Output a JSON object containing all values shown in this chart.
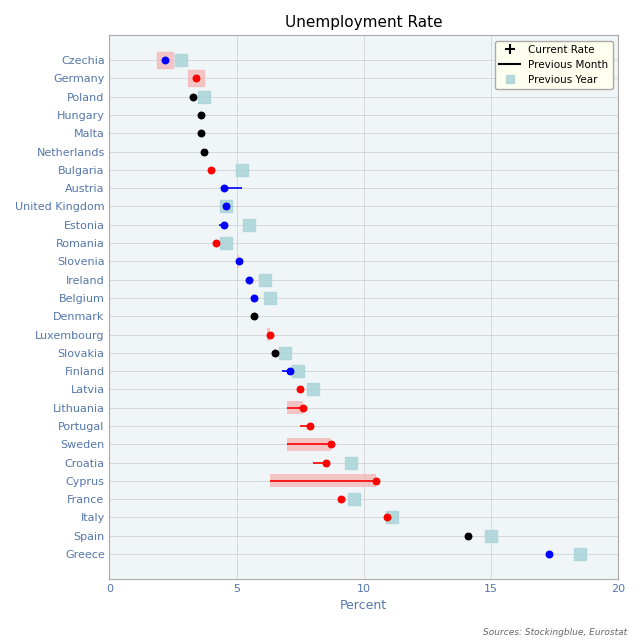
{
  "title": "Unemployment Rate",
  "xlabel": "Percent",
  "source_text": "Sources: Stockingblue, Eurostat",
  "countries": [
    "Czechia",
    "Germany",
    "Poland",
    "Hungary",
    "Malta",
    "Netherlands",
    "Bulgaria",
    "Austria",
    "United Kingdom",
    "Estonia",
    "Romania",
    "Slovenia",
    "Ireland",
    "Belgium",
    "Denmark",
    "Luxembourg",
    "Slovakia",
    "Finland",
    "Latvia",
    "Lithuania",
    "Portugal",
    "Sweden",
    "Croatia",
    "Cyprus",
    "France",
    "Italy",
    "Spain",
    "Greece"
  ],
  "current_rate": [
    2.2,
    3.4,
    3.3,
    3.6,
    3.6,
    3.7,
    4.0,
    4.5,
    4.6,
    4.5,
    4.2,
    5.1,
    5.5,
    5.7,
    5.7,
    6.3,
    6.5,
    7.1,
    7.5,
    7.6,
    7.9,
    8.7,
    8.5,
    10.5,
    9.1,
    10.9,
    14.1,
    17.3
  ],
  "dot_colors": [
    "blue",
    "red",
    "black",
    "black",
    "black",
    "black",
    "red",
    "blue",
    "blue",
    "blue",
    "red",
    "blue",
    "blue",
    "blue",
    "black",
    "red",
    "black",
    "blue",
    "red",
    "red",
    "red",
    "red",
    "red",
    "red",
    "red",
    "red",
    "black",
    "blue"
  ],
  "prev_month_start": [
    null,
    null,
    null,
    null,
    null,
    null,
    null,
    4.5,
    null,
    4.3,
    null,
    5.0,
    null,
    null,
    null,
    null,
    null,
    6.8,
    null,
    7.0,
    7.5,
    7.0,
    8.0,
    6.3,
    null,
    null,
    null,
    null
  ],
  "prev_month_end": [
    null,
    null,
    null,
    null,
    null,
    null,
    null,
    5.2,
    null,
    4.5,
    null,
    5.1,
    null,
    null,
    null,
    null,
    null,
    7.1,
    null,
    7.6,
    7.9,
    8.7,
    8.5,
    10.5,
    null,
    null,
    null,
    null
  ],
  "line_colors": [
    null,
    null,
    null,
    null,
    null,
    null,
    null,
    "blue",
    null,
    "blue",
    null,
    "blue",
    null,
    null,
    null,
    null,
    null,
    "blue",
    null,
    "red",
    "red",
    "red",
    "red",
    "red",
    null,
    null,
    null,
    null
  ],
  "prev_year": [
    2.8,
    null,
    3.7,
    null,
    null,
    null,
    5.2,
    null,
    4.6,
    5.5,
    4.6,
    null,
    6.1,
    6.3,
    null,
    null,
    6.9,
    7.4,
    8.0,
    null,
    null,
    null,
    9.5,
    null,
    9.6,
    11.1,
    15.0,
    18.5
  ],
  "pink_rect": [
    true,
    true,
    false,
    false,
    false,
    false,
    false,
    false,
    false,
    false,
    false,
    true,
    false,
    false,
    false,
    true,
    false,
    false,
    false,
    true,
    false,
    true,
    false,
    true,
    false,
    false,
    false,
    false
  ],
  "pink_rect_x": [
    2.2,
    3.4,
    null,
    null,
    null,
    null,
    null,
    null,
    null,
    null,
    null,
    5.0,
    null,
    null,
    null,
    6.2,
    null,
    null,
    null,
    7.0,
    null,
    7.0,
    null,
    6.3,
    null,
    null,
    null,
    null
  ],
  "xlim": [
    0,
    20
  ],
  "xticks": [
    0,
    5,
    10,
    15,
    20
  ],
  "prev_year_color": "#aad4d9",
  "pink_color": "#f5b8b8",
  "label_color": "#5577aa",
  "legend_bg": "#fffff0",
  "bg_color": "#f0f4f8"
}
